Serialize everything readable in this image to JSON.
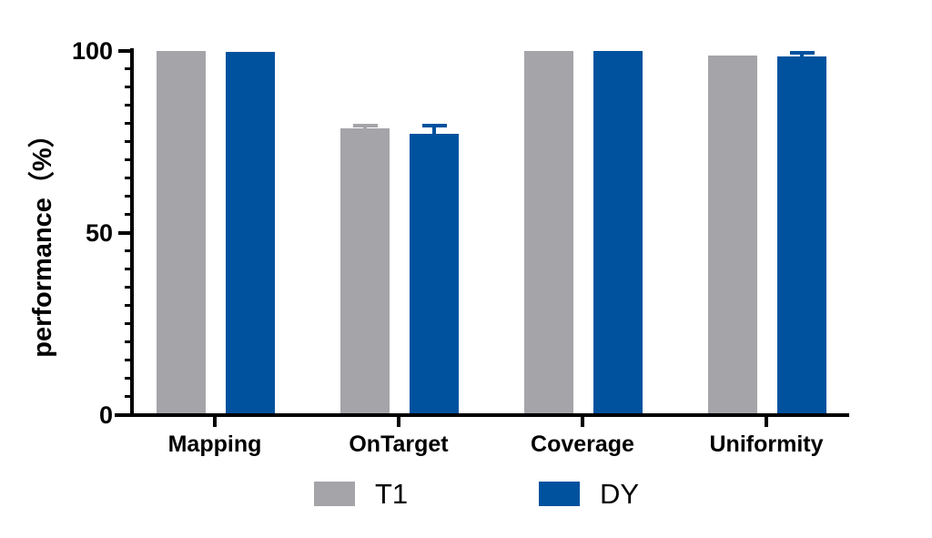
{
  "chart_data": {
    "type": "bar",
    "title": "",
    "categories": [
      "Mapping",
      "OnTarget",
      "Coverage",
      "Uniformity"
    ],
    "series": [
      {
        "name": "T1",
        "color": "#A4A4A9",
        "values": [
          100,
          78.8,
          100,
          98.8
        ],
        "errors": [
          0,
          0.6,
          0,
          0
        ]
      },
      {
        "name": "DY",
        "color": "#00529F",
        "values": [
          99.8,
          77.3,
          100,
          98.4
        ],
        "errors": [
          0,
          2.1,
          0,
          1.0
        ]
      }
    ],
    "xlabel": "",
    "ylabel": "performance（%）",
    "ylim": [
      0,
      100
    ],
    "yticks": [
      0,
      50,
      100
    ],
    "minor_tick_step": 5,
    "grid": false,
    "error_bar_style": "cap-and-stem, same color as bar",
    "legend_position": "bottom-center",
    "axis_color": "#000000",
    "background_color": "#FFFFFF"
  }
}
